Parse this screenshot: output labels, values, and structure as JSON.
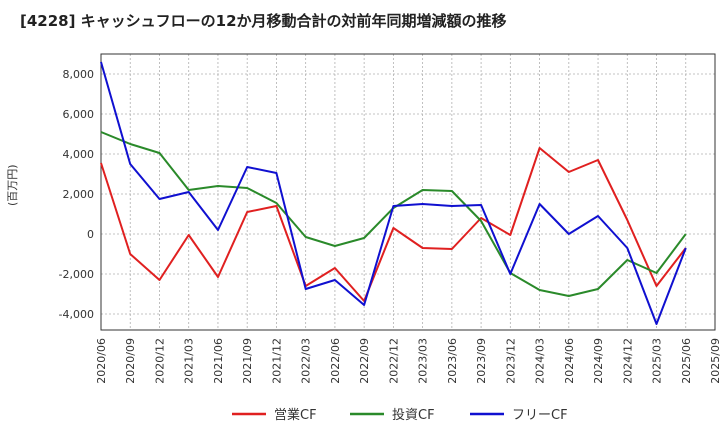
{
  "chart_data": {
    "type": "line",
    "title": "[4228]  キャッシュフローの12か月移動合計の対前年同期増減額の推移",
    "ylabel": "(百万円)",
    "xlabel": "",
    "ylim": [
      -4800,
      9000
    ],
    "yticks": [
      8000,
      6000,
      4000,
      2000,
      0,
      -2000,
      -4000
    ],
    "ytick_labels": [
      "8,000",
      "6,000",
      "4,000",
      "2,000",
      "0",
      "-2,000",
      "-4,000"
    ],
    "categories": [
      "2020/06",
      "2020/09",
      "2020/12",
      "2021/03",
      "2021/06",
      "2021/09",
      "2021/12",
      "2022/03",
      "2022/06",
      "2022/09",
      "2022/12",
      "2023/03",
      "2023/06",
      "2023/09",
      "2023/12",
      "2024/03",
      "2024/06",
      "2024/09",
      "2024/12",
      "2025/03",
      "2025/06",
      "2025/09"
    ],
    "grid": true,
    "legend_position": "bottom",
    "series": [
      {
        "name": "営業CF",
        "color": "#e02020",
        "values": [
          3550,
          -1000,
          -2300,
          -50,
          -2150,
          1100,
          1400,
          -2600,
          -1700,
          -3350,
          300,
          -700,
          -750,
          800,
          -50,
          4300,
          3100,
          3700,
          700,
          -2600,
          -700,
          null
        ]
      },
      {
        "name": "投資CF",
        "color": "#2a8a2a",
        "values": [
          5100,
          4500,
          4050,
          2200,
          2400,
          2300,
          1550,
          -150,
          -600,
          -200,
          1300,
          2200,
          2150,
          650,
          -1950,
          -2800,
          -3100,
          -2750,
          -1300,
          -1950,
          0,
          null
        ]
      },
      {
        "name": "フリーCF",
        "color": "#1010d0",
        "values": [
          8600,
          3500,
          1750,
          2100,
          200,
          3350,
          3050,
          -2750,
          -2300,
          -3550,
          1400,
          1500,
          1400,
          1450,
          -2000,
          1500,
          0,
          900,
          -700,
          -4500,
          -700,
          null
        ]
      }
    ]
  }
}
